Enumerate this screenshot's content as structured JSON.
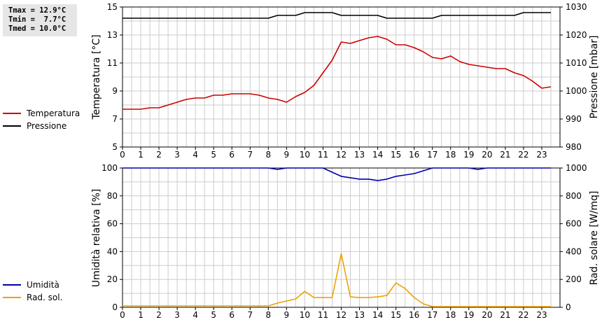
{
  "stats": {
    "tmax": "Tmax = 12.9°C",
    "tmin": "Tmin =  7.7°C",
    "tmed": "Tmed = 10.0°C"
  },
  "colors": {
    "temperature": "#cc0000",
    "pressure": "#000000",
    "humidity": "#0000aa",
    "radiation": "#f0a000",
    "grid": "#cccccc"
  },
  "chart_data": [
    {
      "type": "line",
      "legend": [
        {
          "name": "Temperatura",
          "color": "#cc0000"
        },
        {
          "name": "Pressione",
          "color": "#000000"
        }
      ],
      "xlabel": "",
      "ylabel": "Temperatura [°C]",
      "y2label": "Pressione [mbar]",
      "xlim": [
        0,
        24
      ],
      "xticks": [
        "0",
        "1",
        "2",
        "3",
        "4",
        "5",
        "6",
        "7",
        "8",
        "9",
        "10",
        "11",
        "12",
        "13",
        "14",
        "15",
        "16",
        "17",
        "18",
        "19",
        "20",
        "21",
        "22",
        "23"
      ],
      "ylim": [
        5,
        15
      ],
      "yticks": [
        "5",
        "7",
        "9",
        "11",
        "13",
        "15"
      ],
      "y2lim": [
        980,
        1030
      ],
      "y2ticks": [
        "980",
        "990",
        "1000",
        "1010",
        "1020",
        "1030"
      ],
      "grid": true,
      "series": [
        {
          "name": "Temperatura",
          "axis": "left",
          "x": [
            0,
            0.5,
            1,
            1.5,
            2,
            2.5,
            3,
            3.5,
            4,
            4.5,
            5,
            5.5,
            6,
            6.5,
            7,
            7.5,
            8,
            8.5,
            9,
            9.5,
            10,
            10.5,
            11,
            11.5,
            12,
            12.5,
            13,
            13.5,
            14,
            14.5,
            15,
            15.5,
            16,
            16.5,
            17,
            17.5,
            18,
            18.5,
            19,
            19.5,
            20,
            20.5,
            21,
            21.5,
            22,
            22.5,
            23,
            23.5
          ],
          "values": [
            7.7,
            7.7,
            7.7,
            7.8,
            7.8,
            8.0,
            8.2,
            8.4,
            8.5,
            8.5,
            8.7,
            8.7,
            8.8,
            8.8,
            8.8,
            8.7,
            8.5,
            8.4,
            8.2,
            8.6,
            8.9,
            9.4,
            10.3,
            11.2,
            12.5,
            12.4,
            12.6,
            12.8,
            12.9,
            12.7,
            12.3,
            12.3,
            12.1,
            11.8,
            11.4,
            11.3,
            11.5,
            11.1,
            10.9,
            10.8,
            10.7,
            10.6,
            10.6,
            10.3,
            10.1,
            9.7,
            9.2,
            9.3
          ]
        },
        {
          "name": "Pressione",
          "axis": "right",
          "x": [
            0,
            0.5,
            1,
            1.5,
            2,
            2.5,
            3,
            3.5,
            4,
            4.5,
            5,
            5.5,
            6,
            6.5,
            7,
            7.5,
            8,
            8.5,
            9,
            9.5,
            10,
            10.5,
            11,
            11.5,
            12,
            12.5,
            13,
            13.5,
            14,
            14.5,
            15,
            15.5,
            16,
            16.5,
            17,
            17.5,
            18,
            18.5,
            19,
            19.5,
            20,
            20.5,
            21,
            21.5,
            22,
            22.5,
            23,
            23.5
          ],
          "values": [
            1026,
            1026,
            1026,
            1026,
            1026,
            1026,
            1026,
            1026,
            1026,
            1026,
            1026,
            1026,
            1026,
            1026,
            1026,
            1026,
            1026,
            1027,
            1027,
            1027,
            1028,
            1028,
            1028,
            1028,
            1027,
            1027,
            1027,
            1027,
            1027,
            1026,
            1026,
            1026,
            1026,
            1026,
            1026,
            1027,
            1027,
            1027,
            1027,
            1027,
            1027,
            1027,
            1027,
            1027,
            1028,
            1028,
            1028,
            1028
          ]
        }
      ]
    },
    {
      "type": "line",
      "legend": [
        {
          "name": "Umidità",
          "color": "#0000aa"
        },
        {
          "name": "Rad. sol.",
          "color": "#f0a000"
        }
      ],
      "xlabel": "",
      "ylabel": "Umidità relativa [%]",
      "y2label": "Rad. solare [W/mq]",
      "xlim": [
        0,
        24
      ],
      "xticks": [
        "0",
        "1",
        "2",
        "3",
        "4",
        "5",
        "6",
        "7",
        "8",
        "9",
        "10",
        "11",
        "12",
        "13",
        "14",
        "15",
        "16",
        "17",
        "18",
        "19",
        "20",
        "21",
        "22",
        "23"
      ],
      "ylim": [
        0,
        100
      ],
      "yticks": [
        "0",
        "20",
        "40",
        "60",
        "80",
        "100"
      ],
      "y2lim": [
        0,
        1000
      ],
      "y2ticks": [
        "0",
        "200",
        "400",
        "600",
        "800",
        "1000"
      ],
      "grid": true,
      "series": [
        {
          "name": "Umidità",
          "axis": "left",
          "x": [
            0,
            1,
            2,
            3,
            4,
            5,
            6,
            7,
            8,
            8.5,
            9,
            10,
            11,
            11.5,
            12,
            12.5,
            13,
            13.5,
            14,
            14.5,
            15,
            15.5,
            16,
            16.5,
            17,
            18,
            19,
            19.5,
            20,
            21,
            22,
            23,
            23.5
          ],
          "values": [
            100,
            100,
            100,
            100,
            100,
            100,
            100,
            100,
            100,
            99,
            100,
            100,
            100,
            97,
            94,
            93,
            92,
            92,
            91,
            92,
            94,
            95,
            96,
            98,
            100,
            100,
            100,
            99,
            100,
            100,
            100,
            100,
            100
          ]
        },
        {
          "name": "Rad. sol.",
          "axis": "right",
          "x": [
            0,
            1,
            2,
            3,
            4,
            5,
            6,
            7,
            8,
            8.5,
            9,
            9.5,
            10,
            10.5,
            11,
            11.5,
            12,
            12.5,
            13,
            13.5,
            14,
            14.5,
            15,
            15.5,
            16,
            16.5,
            17,
            18,
            19,
            20,
            21,
            22,
            23,
            23.5
          ],
          "values": [
            10,
            10,
            10,
            10,
            10,
            10,
            10,
            10,
            10,
            30,
            45,
            60,
            115,
            70,
            70,
            70,
            385,
            75,
            70,
            70,
            75,
            85,
            175,
            135,
            70,
            25,
            5,
            5,
            5,
            5,
            5,
            5,
            5,
            5
          ]
        }
      ]
    }
  ]
}
